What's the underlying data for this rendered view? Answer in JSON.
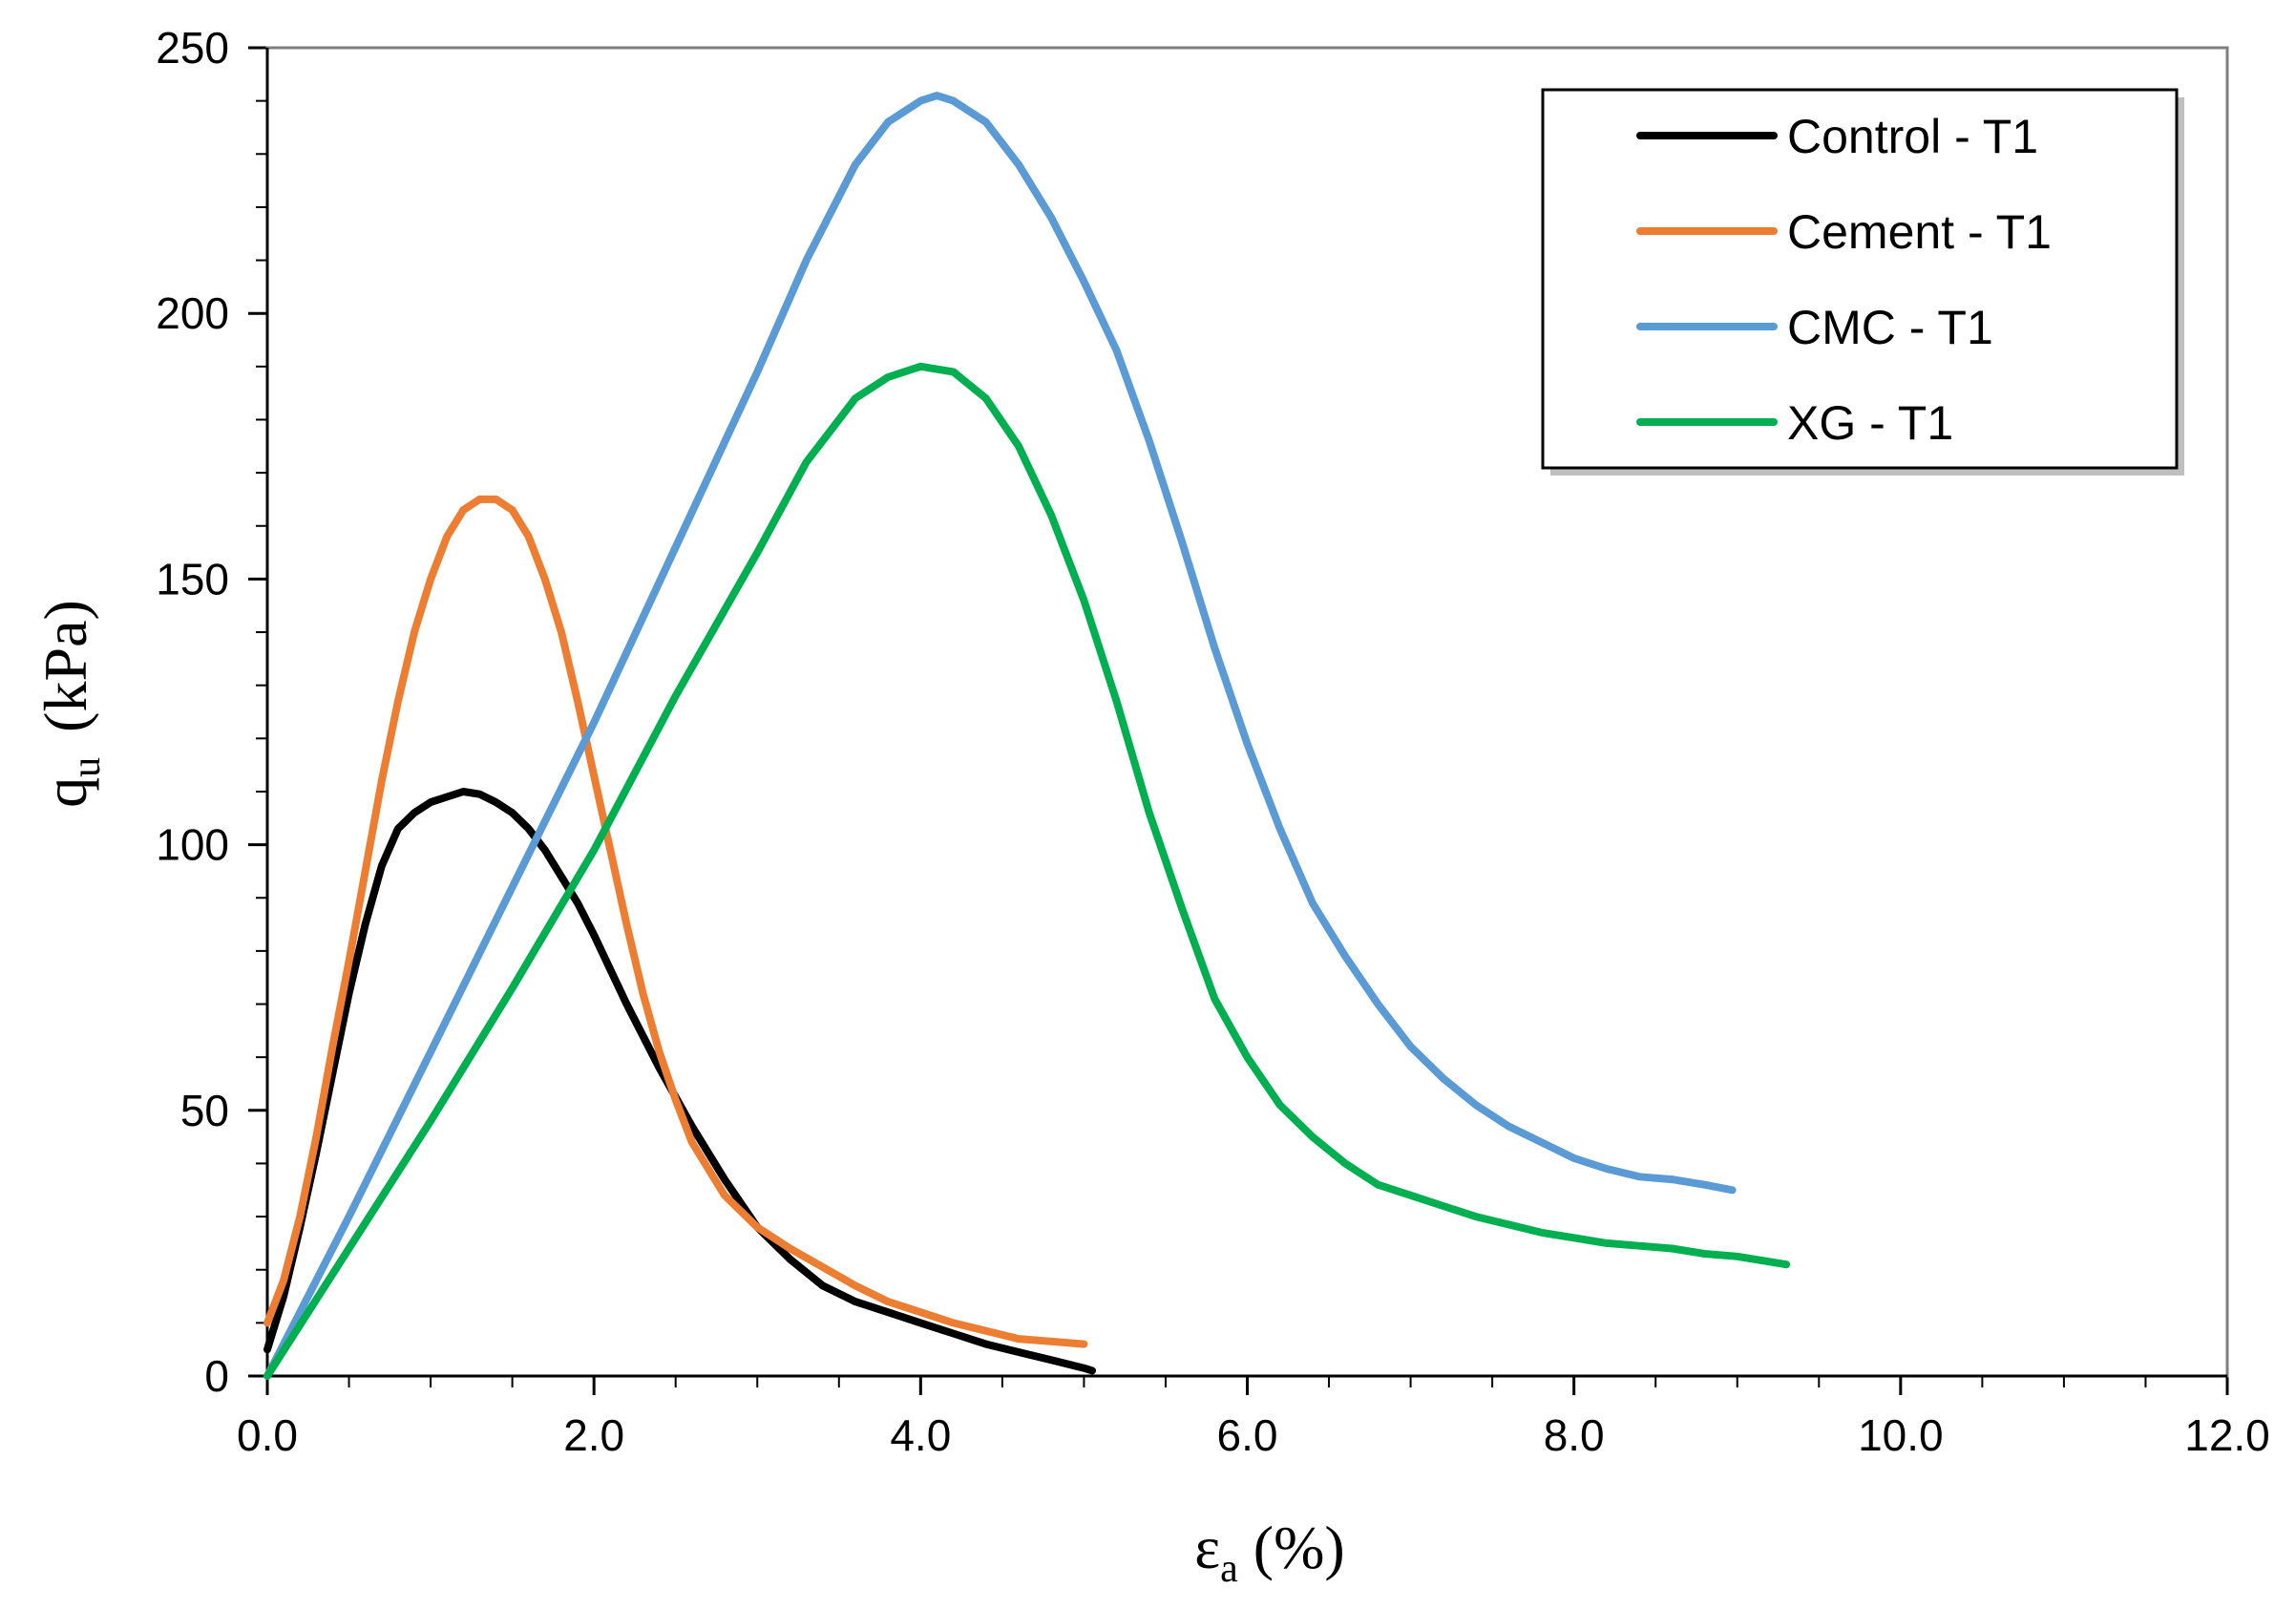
{
  "chart_data": {
    "type": "line",
    "title": "",
    "xlabel_main": "ε",
    "xlabel_sub": "a",
    "xlabel_unit": "(%)",
    "ylabel_main": "q",
    "ylabel_sub": "u",
    "ylabel_unit": "(kPa)",
    "xlim": [
      0,
      12
    ],
    "ylim": [
      0,
      250
    ],
    "x_ticks": [
      0,
      2,
      4,
      6,
      8,
      10,
      12
    ],
    "x_tick_labels": [
      "0.0",
      "2.0",
      "4.0",
      "6.0",
      "8.0",
      "10.0",
      "12.0"
    ],
    "x_minor_step": 0.5,
    "y_ticks": [
      0,
      50,
      100,
      150,
      200,
      250
    ],
    "y_tick_labels": [
      "0",
      "50",
      "100",
      "150",
      "200",
      "250"
    ],
    "y_minor_step": 10,
    "grid": false,
    "legend_position": "top-right",
    "series": [
      {
        "name": "Control - T1",
        "color": "#000000",
        "x": [
          0,
          0.1,
          0.2,
          0.3,
          0.4,
          0.5,
          0.6,
          0.7,
          0.8,
          0.9,
          1.0,
          1.1,
          1.2,
          1.3,
          1.4,
          1.5,
          1.6,
          1.7,
          1.8,
          1.9,
          2.0,
          2.2,
          2.4,
          2.6,
          2.8,
          3.0,
          3.2,
          3.4,
          3.6,
          3.8,
          4.0,
          4.2,
          4.4,
          4.6,
          4.8,
          5.0,
          5.05
        ],
        "y": [
          5,
          15,
          28,
          42,
          57,
          72,
          85,
          96,
          103,
          106,
          108,
          109,
          110,
          109.5,
          108,
          106,
          103,
          99,
          94,
          89,
          83,
          70,
          58,
          47,
          37,
          28,
          22,
          17,
          14,
          12,
          10,
          8,
          6,
          4.5,
          3,
          1.5,
          1
        ]
      },
      {
        "name": "Cement - T1",
        "color": "#ED7D31",
        "x": [
          0,
          0.1,
          0.2,
          0.3,
          0.4,
          0.5,
          0.6,
          0.7,
          0.8,
          0.9,
          1.0,
          1.1,
          1.2,
          1.3,
          1.4,
          1.5,
          1.6,
          1.7,
          1.8,
          1.9,
          2.0,
          2.1,
          2.2,
          2.3,
          2.4,
          2.5,
          2.6,
          2.8,
          3.0,
          3.2,
          3.4,
          3.6,
          3.8,
          4.0,
          4.2,
          4.4,
          4.6,
          4.8,
          5.0
        ],
        "y": [
          10,
          18,
          30,
          45,
          62,
          78,
          95,
          112,
          127,
          140,
          150,
          158,
          163,
          165,
          165,
          163,
          158,
          150,
          140,
          127,
          113,
          99,
          85,
          72,
          61,
          52,
          44,
          34,
          28,
          24,
          20.5,
          17,
          14,
          12,
          10,
          8.5,
          7,
          6.5,
          6
        ]
      },
      {
        "name": "CMC - T1",
        "color": "#5B9BD5",
        "x": [
          0,
          0.5,
          1.0,
          1.5,
          2.0,
          2.5,
          3.0,
          3.3,
          3.6,
          3.8,
          4.0,
          4.1,
          4.2,
          4.4,
          4.6,
          4.8,
          5.0,
          5.2,
          5.4,
          5.6,
          5.8,
          6.0,
          6.2,
          6.4,
          6.6,
          6.8,
          7.0,
          7.2,
          7.4,
          7.6,
          7.8,
          8.0,
          8.2,
          8.4,
          8.6,
          8.8,
          8.97
        ],
        "y": [
          0,
          30,
          61,
          92,
          123,
          156,
          189,
          210,
          228,
          236,
          240,
          241,
          240,
          236,
          228,
          218,
          206,
          193,
          176,
          157,
          137,
          119,
          103,
          89,
          79,
          70,
          62,
          56,
          51,
          47,
          44,
          41,
          39,
          37.5,
          37,
          36,
          35
        ]
      },
      {
        "name": "XG - T1",
        "color": "#00B050",
        "x": [
          0,
          0.5,
          1.0,
          1.5,
          2.0,
          2.5,
          3.0,
          3.3,
          3.6,
          3.8,
          4.0,
          4.2,
          4.4,
          4.6,
          4.8,
          5.0,
          5.2,
          5.4,
          5.6,
          5.8,
          6.0,
          6.2,
          6.4,
          6.6,
          6.8,
          7.0,
          7.2,
          7.4,
          7.6,
          7.8,
          8.0,
          8.2,
          8.4,
          8.6,
          8.8,
          9.0,
          9.3
        ],
        "y": [
          0,
          24,
          48,
          73,
          99,
          128,
          155,
          172,
          184,
          188,
          190,
          189,
          184,
          175,
          162,
          146,
          127,
          106,
          88,
          71,
          60,
          51,
          45,
          40,
          36,
          34,
          32,
          30,
          28.5,
          27,
          26,
          25,
          24.5,
          24,
          23,
          22.5,
          21
        ]
      }
    ]
  }
}
